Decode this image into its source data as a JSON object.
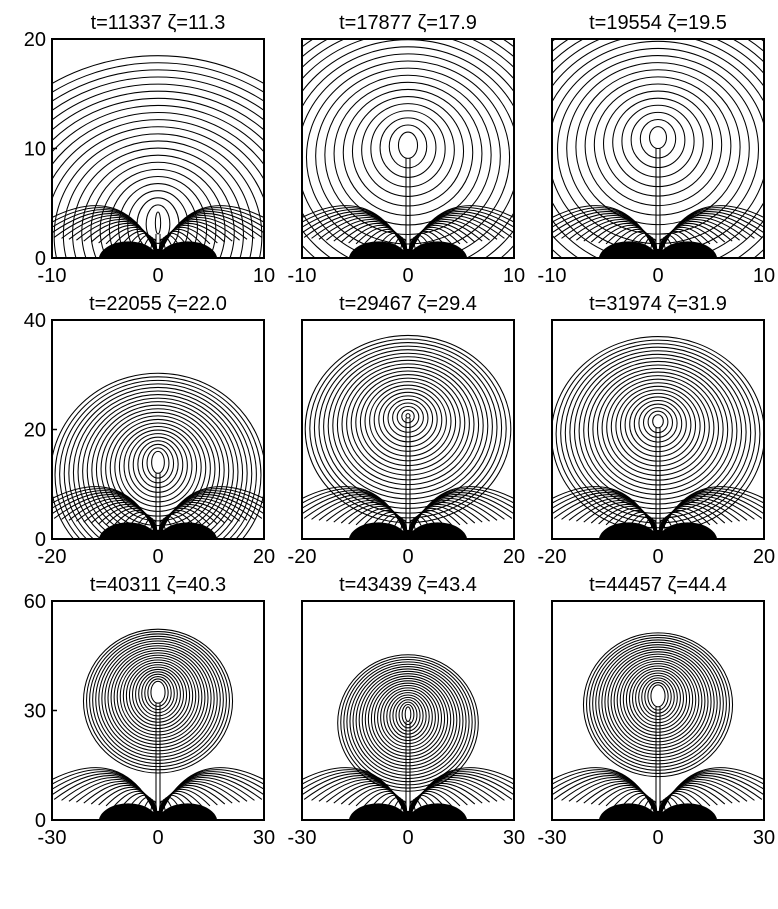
{
  "chart_data": [
    {
      "type": "contour",
      "title": "t=11337  ζ=11.3",
      "xlim": [
        -10,
        10
      ],
      "ylim": [
        0,
        20
      ],
      "x_ticks": [
        -10,
        0,
        10
      ],
      "y_ticks": [
        0,
        10,
        20
      ],
      "x_tick_labels": [
        "-10",
        "0",
        "10"
      ],
      "y_tick_labels": [
        "0",
        "10",
        "20"
      ],
      "show_y_ticks": true,
      "center_y": 3.2,
      "inner_rx": 0.25,
      "inner_ry": 1.0
    },
    {
      "type": "contour",
      "title": "t=17877  ζ=17.9",
      "xlim": [
        -10,
        10
      ],
      "ylim": [
        0,
        20
      ],
      "x_ticks": [
        -10,
        0,
        10
      ],
      "y_ticks": [
        0,
        10,
        20
      ],
      "x_tick_labels": [
        "-10",
        "0",
        "10"
      ],
      "y_tick_labels": [
        "",
        "",
        ""
      ],
      "show_y_ticks": false,
      "center_y": 10.3,
      "inner_rx": 0.9,
      "inner_ry": 1.2
    },
    {
      "type": "contour",
      "title": "t=19554  ζ=19.5",
      "xlim": [
        -10,
        10
      ],
      "ylim": [
        0,
        20
      ],
      "x_ticks": [
        -10,
        0,
        10
      ],
      "y_ticks": [
        0,
        10,
        20
      ],
      "x_tick_labels": [
        "-10",
        "0",
        "10"
      ],
      "y_tick_labels": [
        "",
        "",
        ""
      ],
      "show_y_ticks": false,
      "center_y": 11.0,
      "inner_rx": 0.8,
      "inner_ry": 1.0
    },
    {
      "type": "contour",
      "title": "t=22055  ζ=22.0",
      "xlim": [
        -20,
        20
      ],
      "ylim": [
        0,
        40
      ],
      "x_ticks": [
        -20,
        0,
        20
      ],
      "y_ticks": [
        0,
        20,
        40
      ],
      "x_tick_labels": [
        "-20",
        "0",
        "20"
      ],
      "y_tick_labels": [
        "0",
        "20",
        "40"
      ],
      "show_y_ticks": true,
      "center_y": 14.0,
      "inner_rx": 1.2,
      "inner_ry": 2.0
    },
    {
      "type": "contour",
      "title": "t=29467  ζ=29.4",
      "xlim": [
        -20,
        20
      ],
      "ylim": [
        0,
        40
      ],
      "x_ticks": [
        -20,
        0,
        20
      ],
      "y_ticks": [
        0,
        20,
        40
      ],
      "x_tick_labels": [
        "-20",
        "0",
        "20"
      ],
      "y_tick_labels": [
        "",
        "",
        ""
      ],
      "show_y_ticks": false,
      "center_y": 22.5,
      "inner_rx": 0.3,
      "inner_ry": 0.4
    },
    {
      "type": "contour",
      "title": "t=31974  ζ=31.9",
      "xlim": [
        -20,
        20
      ],
      "ylim": [
        0,
        40
      ],
      "x_ticks": [
        -20,
        0,
        20
      ],
      "y_ticks": [
        0,
        20,
        40
      ],
      "x_tick_labels": [
        "-20",
        "0",
        "20"
      ],
      "y_tick_labels": [
        "",
        "",
        ""
      ],
      "show_y_ticks": false,
      "center_y": 21.5,
      "inner_rx": 1.0,
      "inner_ry": 1.2
    },
    {
      "type": "contour",
      "title": "t=40311  ζ=40.3",
      "xlim": [
        -30,
        30
      ],
      "ylim": [
        0,
        60
      ],
      "x_ticks": [
        -30,
        0,
        30
      ],
      "y_ticks": [
        0,
        30,
        60
      ],
      "x_tick_labels": [
        "-30",
        "0",
        "30"
      ],
      "y_tick_labels": [
        "0",
        "30",
        "60"
      ],
      "show_y_ticks": true,
      "center_y": 35.0,
      "inner_rx": 2.0,
      "inner_ry": 3.0
    },
    {
      "type": "contour",
      "title": "t=43439  ζ=43.4",
      "xlim": [
        -30,
        30
      ],
      "ylim": [
        0,
        60
      ],
      "x_ticks": [
        -30,
        0,
        30
      ],
      "y_ticks": [
        0,
        30,
        60
      ],
      "x_tick_labels": [
        "-30",
        "0",
        "30"
      ],
      "y_tick_labels": [
        "",
        "",
        ""
      ],
      "show_y_ticks": false,
      "center_y": 29.0,
      "inner_rx": 0.8,
      "inner_ry": 2.0
    },
    {
      "type": "contour",
      "title": "t=44457  ζ=44.4",
      "xlim": [
        -30,
        30
      ],
      "ylim": [
        0,
        60
      ],
      "x_ticks": [
        -30,
        0,
        30
      ],
      "y_ticks": [
        0,
        30,
        60
      ],
      "x_tick_labels": [
        "-30",
        "0",
        "30"
      ],
      "y_tick_labels": [
        "",
        "",
        ""
      ],
      "show_y_ticks": false,
      "center_y": 34.0,
      "inner_rx": 2.0,
      "inner_ry": 3.0
    }
  ]
}
